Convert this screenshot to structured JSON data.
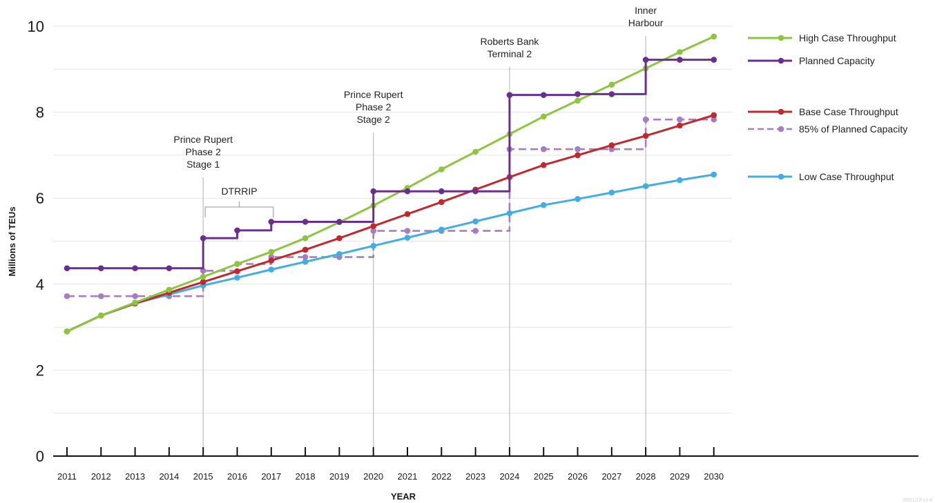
{
  "chart_data": {
    "type": "line",
    "xlabel": "YEAR",
    "ylabel": "Millions of TEUs",
    "ylim": [
      0,
      10
    ],
    "yticks": [
      "0",
      "2",
      "4",
      "6",
      "8",
      "10"
    ],
    "x": [
      "2011",
      "2012",
      "2013",
      "2014",
      "2015",
      "2016",
      "2017",
      "2018",
      "2019",
      "2020",
      "2021",
      "2022",
      "2023",
      "2024",
      "2025",
      "2026",
      "2027",
      "2028",
      "2029",
      "2030"
    ],
    "grid": "horizontal",
    "legend_position": "right",
    "series": [
      {
        "name": "High Case Throughput",
        "color": "#8cc63f",
        "style": "line",
        "values": [
          2.9,
          3.27,
          3.57,
          3.87,
          4.17,
          4.47,
          4.75,
          5.07,
          5.44,
          5.83,
          6.24,
          6.67,
          7.08,
          7.49,
          7.9,
          8.27,
          8.64,
          9.02,
          9.4,
          9.76
        ]
      },
      {
        "name": "Planned Capacity",
        "color": "#6a2e91",
        "style": "step",
        "values": [
          4.37,
          4.37,
          4.37,
          4.37,
          5.07,
          5.25,
          5.45,
          5.45,
          5.45,
          6.16,
          6.16,
          6.16,
          6.16,
          8.4,
          8.4,
          8.42,
          8.42,
          9.22,
          9.22,
          9.22
        ]
      },
      {
        "name": "Base Case Throughput",
        "color": "#c0282d",
        "style": "line",
        "values": [
          2.9,
          3.27,
          3.55,
          3.8,
          4.05,
          4.3,
          4.55,
          4.8,
          5.07,
          5.35,
          5.63,
          5.91,
          6.2,
          6.49,
          6.77,
          7.0,
          7.23,
          7.45,
          7.69,
          7.93
        ]
      },
      {
        "name": "85% of Planned Capacity",
        "color": "#a77cc2",
        "style": "step-dashed",
        "values": [
          3.72,
          3.72,
          3.72,
          3.72,
          4.31,
          4.47,
          4.63,
          4.63,
          4.63,
          5.24,
          5.24,
          5.24,
          5.24,
          7.14,
          7.14,
          7.14,
          7.14,
          7.83,
          7.83,
          7.83
        ]
      },
      {
        "name": "Low Case Throughput",
        "color": "#41ade2",
        "style": "line",
        "values": [
          2.9,
          3.27,
          3.55,
          3.76,
          3.97,
          4.15,
          4.34,
          4.52,
          4.7,
          4.89,
          5.08,
          5.27,
          5.46,
          5.65,
          5.84,
          5.98,
          6.13,
          6.28,
          6.42,
          6.55
        ]
      }
    ],
    "annotations": [
      {
        "x": "2015",
        "lines": [
          "Prince Rupert",
          "Phase 2",
          "Stage 1"
        ]
      },
      {
        "x": "2020",
        "lines": [
          "Prince Rupert",
          "Phase 2",
          "Stage 2"
        ]
      },
      {
        "x": "2024",
        "lines": [
          "Roberts Bank",
          "Terminal 2"
        ]
      },
      {
        "x": "2028",
        "lines": [
          "Inner",
          "Harbour"
        ]
      }
    ],
    "bracket": {
      "from": "2015",
      "to": "2017",
      "label": "DTRRIP"
    },
    "footnote": "09/21/12-v1.4"
  }
}
